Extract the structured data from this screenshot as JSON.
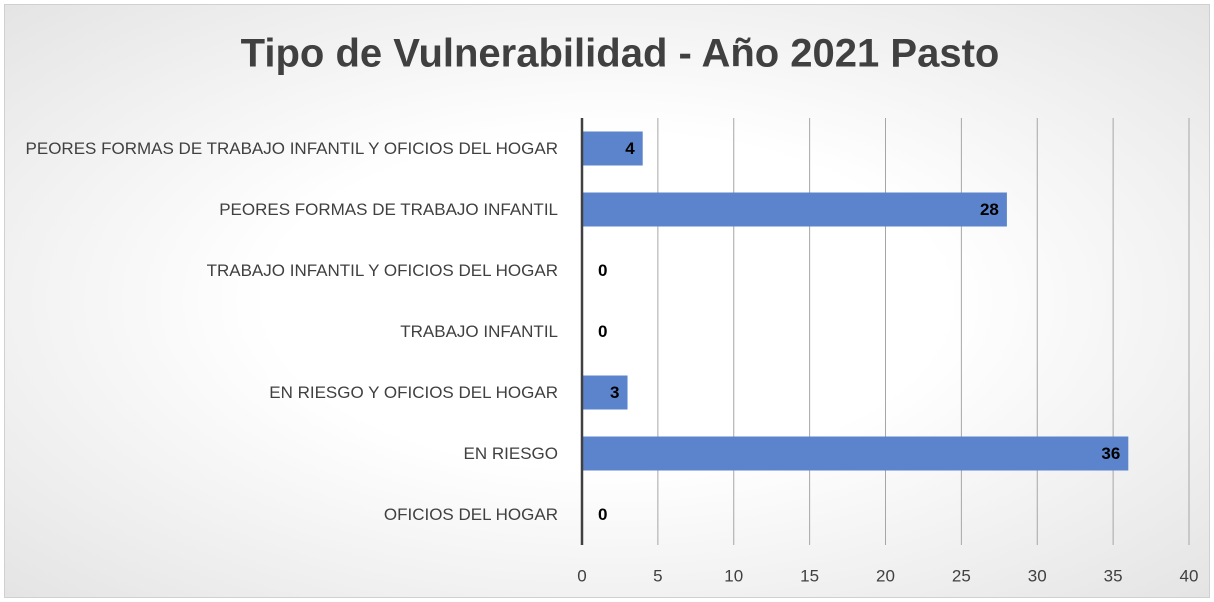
{
  "chart_data": {
    "type": "barh",
    "title": "Tipo de Vulnerabilidad - Año 2021 Pasto",
    "categories": [
      "PEORES FORMAS DE TRABAJO INFANTIL Y OFICIOS DEL HOGAR",
      "PEORES FORMAS DE TRABAJO INFANTIL",
      "TRABAJO INFANTIL Y OFICIOS DEL HOGAR",
      "TRABAJO INFANTIL",
      "EN RIESGO Y OFICIOS DEL HOGAR",
      "EN RIESGO",
      "OFICIOS DEL HOGAR"
    ],
    "values": [
      4,
      28,
      0,
      0,
      3,
      36,
      0
    ],
    "color": "#5b84cc",
    "xlim": [
      0,
      40
    ],
    "xticks": [
      0,
      5,
      10,
      15,
      20,
      25,
      30,
      35,
      40
    ],
    "grid": true
  }
}
